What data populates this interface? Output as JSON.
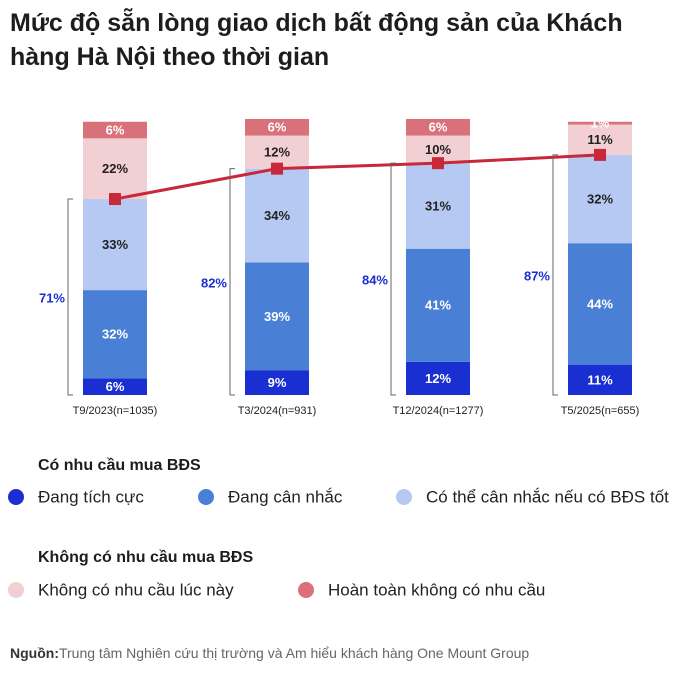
{
  "chart_data": {
    "type": "bar",
    "stacked": true,
    "title": "Mức độ sẵn lòng giao dịch bất động sản của Khách hàng Hà Nội theo thời gian",
    "categories": [
      "T9/2023(n=1035)",
      "T3/2024(n=931)",
      "T12/2024(n=1277)",
      "T5/2025(n=655)"
    ],
    "series": [
      {
        "name": "Đang tích cực",
        "color": "#1a2fd1",
        "values": [
          6,
          9,
          12,
          11
        ],
        "value_labels": [
          "6%",
          "9%",
          "12%",
          "11%"
        ]
      },
      {
        "name": "Đang cân nhắc",
        "color": "#4a7fd6",
        "values": [
          32,
          39,
          41,
          44
        ],
        "value_labels": [
          "32%",
          "39%",
          "41%",
          "44%"
        ]
      },
      {
        "name": "Có thể cân nhắc nếu có BĐS tốt",
        "color": "#b6c9f3",
        "values": [
          33,
          34,
          31,
          32
        ],
        "value_labels": [
          "33%",
          "34%",
          "31%",
          "32%"
        ]
      },
      {
        "name": "Không có nhu cầu lúc này",
        "color": "#f1cfd2",
        "values": [
          22,
          12,
          10,
          11
        ],
        "value_labels": [
          "22%",
          "12%",
          "10%",
          "11%"
        ]
      },
      {
        "name": "Hoàn toàn không có nhu cầu",
        "color": "#d9717b",
        "values": [
          6,
          6,
          6,
          1
        ],
        "value_labels": [
          "6%",
          "6%",
          "6%",
          "1%"
        ]
      }
    ],
    "line": {
      "color": "#c8283a",
      "values": [
        71,
        82,
        84,
        87
      ],
      "value_labels": [
        "71%",
        "82%",
        "84%",
        "87%"
      ],
      "label_color": "#1a2fd1"
    },
    "legend_groups": [
      "Có nhu cầu mua BĐS",
      "Không có nhu cầu mua BĐS"
    ],
    "source_label": "Nguồn:",
    "source": "Trung tâm Nghiên cứu thị trường và Am hiểu khách hàng One Mount Group"
  }
}
